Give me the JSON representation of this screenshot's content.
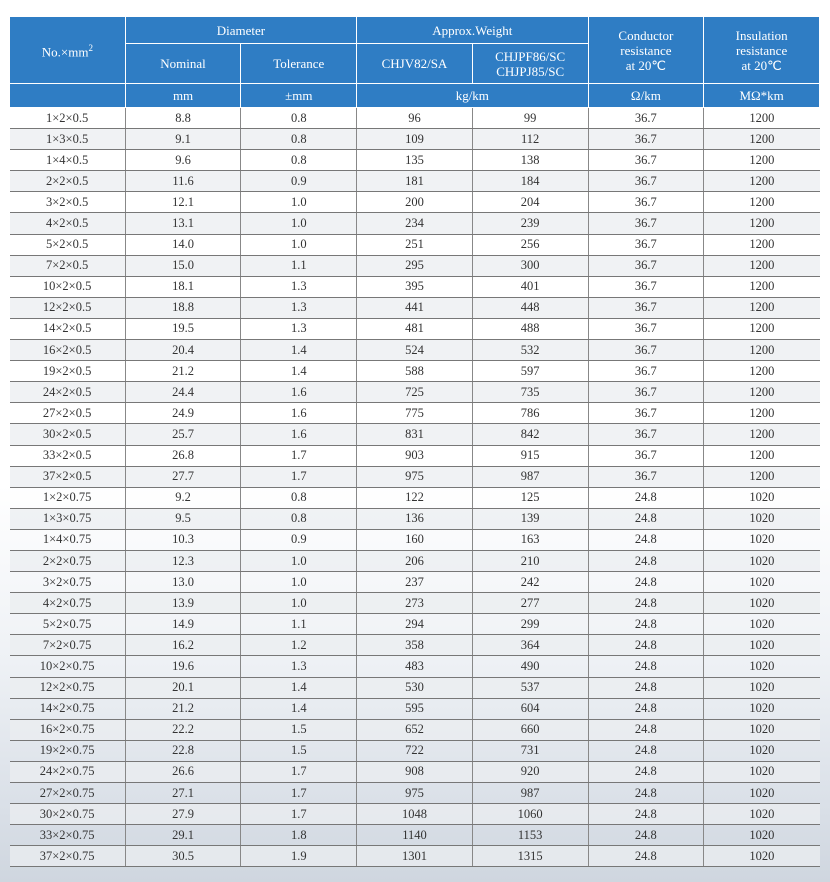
{
  "header": {
    "no": "No.×mm",
    "no_sup": "2",
    "diameter": "Diameter",
    "nominal": "Nominal",
    "tolerance": "Tolerance",
    "weight": "Approx.Weight",
    "w1": "CHJV82/SA",
    "w2a": "CHJPF86/SC",
    "w2b": "CHJPJ85/SC",
    "cond1": "Conductor",
    "cond2": "resistance",
    "cond3": "at 20℃",
    "ins1": "Insulation",
    "ins2": "resistance",
    "ins3": "at 20℃",
    "unit_mm": "mm",
    "unit_tol": "±mm",
    "unit_weight": "kg/km",
    "unit_cond": "Ω/km",
    "unit_ins": "MΩ*km"
  },
  "header_color": "#2f7dc4",
  "rows": [
    [
      "1×2×0.5",
      "8.8",
      "0.8",
      "96",
      "99",
      "36.7",
      "1200"
    ],
    [
      "1×3×0.5",
      "9.1",
      "0.8",
      "109",
      "112",
      "36.7",
      "1200"
    ],
    [
      "1×4×0.5",
      "9.6",
      "0.8",
      "135",
      "138",
      "36.7",
      "1200"
    ],
    [
      "2×2×0.5",
      "11.6",
      "0.9",
      "181",
      "184",
      "36.7",
      "1200"
    ],
    [
      "3×2×0.5",
      "12.1",
      "1.0",
      "200",
      "204",
      "36.7",
      "1200"
    ],
    [
      "4×2×0.5",
      "13.1",
      "1.0",
      "234",
      "239",
      "36.7",
      "1200"
    ],
    [
      "5×2×0.5",
      "14.0",
      "1.0",
      "251",
      "256",
      "36.7",
      "1200"
    ],
    [
      "7×2×0.5",
      "15.0",
      "1.1",
      "295",
      "300",
      "36.7",
      "1200"
    ],
    [
      "10×2×0.5",
      "18.1",
      "1.3",
      "395",
      "401",
      "36.7",
      "1200"
    ],
    [
      "12×2×0.5",
      "18.8",
      "1.3",
      "441",
      "448",
      "36.7",
      "1200"
    ],
    [
      "14×2×0.5",
      "19.5",
      "1.3",
      "481",
      "488",
      "36.7",
      "1200"
    ],
    [
      "16×2×0.5",
      "20.4",
      "1.4",
      "524",
      "532",
      "36.7",
      "1200"
    ],
    [
      "19×2×0.5",
      "21.2",
      "1.4",
      "588",
      "597",
      "36.7",
      "1200"
    ],
    [
      "24×2×0.5",
      "24.4",
      "1.6",
      "725",
      "735",
      "36.7",
      "1200"
    ],
    [
      "27×2×0.5",
      "24.9",
      "1.6",
      "775",
      "786",
      "36.7",
      "1200"
    ],
    [
      "30×2×0.5",
      "25.7",
      "1.6",
      "831",
      "842",
      "36.7",
      "1200"
    ],
    [
      "33×2×0.5",
      "26.8",
      "1.7",
      "903",
      "915",
      "36.7",
      "1200"
    ],
    [
      "37×2×0.5",
      "27.7",
      "1.7",
      "975",
      "987",
      "36.7",
      "1200"
    ],
    [
      "1×2×0.75",
      "9.2",
      "0.8",
      "122",
      "125",
      "24.8",
      "1020"
    ],
    [
      "1×3×0.75",
      "9.5",
      "0.8",
      "136",
      "139",
      "24.8",
      "1020"
    ],
    [
      "1×4×0.75",
      "10.3",
      "0.9",
      "160",
      "163",
      "24.8",
      "1020"
    ],
    [
      "2×2×0.75",
      "12.3",
      "1.0",
      "206",
      "210",
      "24.8",
      "1020"
    ],
    [
      "3×2×0.75",
      "13.0",
      "1.0",
      "237",
      "242",
      "24.8",
      "1020"
    ],
    [
      "4×2×0.75",
      "13.9",
      "1.0",
      "273",
      "277",
      "24.8",
      "1020"
    ],
    [
      "5×2×0.75",
      "14.9",
      "1.1",
      "294",
      "299",
      "24.8",
      "1020"
    ],
    [
      "7×2×0.75",
      "16.2",
      "1.2",
      "358",
      "364",
      "24.8",
      "1020"
    ],
    [
      "10×2×0.75",
      "19.6",
      "1.3",
      "483",
      "490",
      "24.8",
      "1020"
    ],
    [
      "12×2×0.75",
      "20.1",
      "1.4",
      "530",
      "537",
      "24.8",
      "1020"
    ],
    [
      "14×2×0.75",
      "21.2",
      "1.4",
      "595",
      "604",
      "24.8",
      "1020"
    ],
    [
      "16×2×0.75",
      "22.2",
      "1.5",
      "652",
      "660",
      "24.8",
      "1020"
    ],
    [
      "19×2×0.75",
      "22.8",
      "1.5",
      "722",
      "731",
      "24.8",
      "1020"
    ],
    [
      "24×2×0.75",
      "26.6",
      "1.7",
      "908",
      "920",
      "24.8",
      "1020"
    ],
    [
      "27×2×0.75",
      "27.1",
      "1.7",
      "975",
      "987",
      "24.8",
      "1020"
    ],
    [
      "30×2×0.75",
      "27.9",
      "1.7",
      "1048",
      "1060",
      "24.8",
      "1020"
    ],
    [
      "33×2×0.75",
      "29.1",
      "1.8",
      "1140",
      "1153",
      "24.8",
      "1020"
    ],
    [
      "37×2×0.75",
      "30.5",
      "1.9",
      "1301",
      "1315",
      "24.8",
      "1020"
    ]
  ]
}
